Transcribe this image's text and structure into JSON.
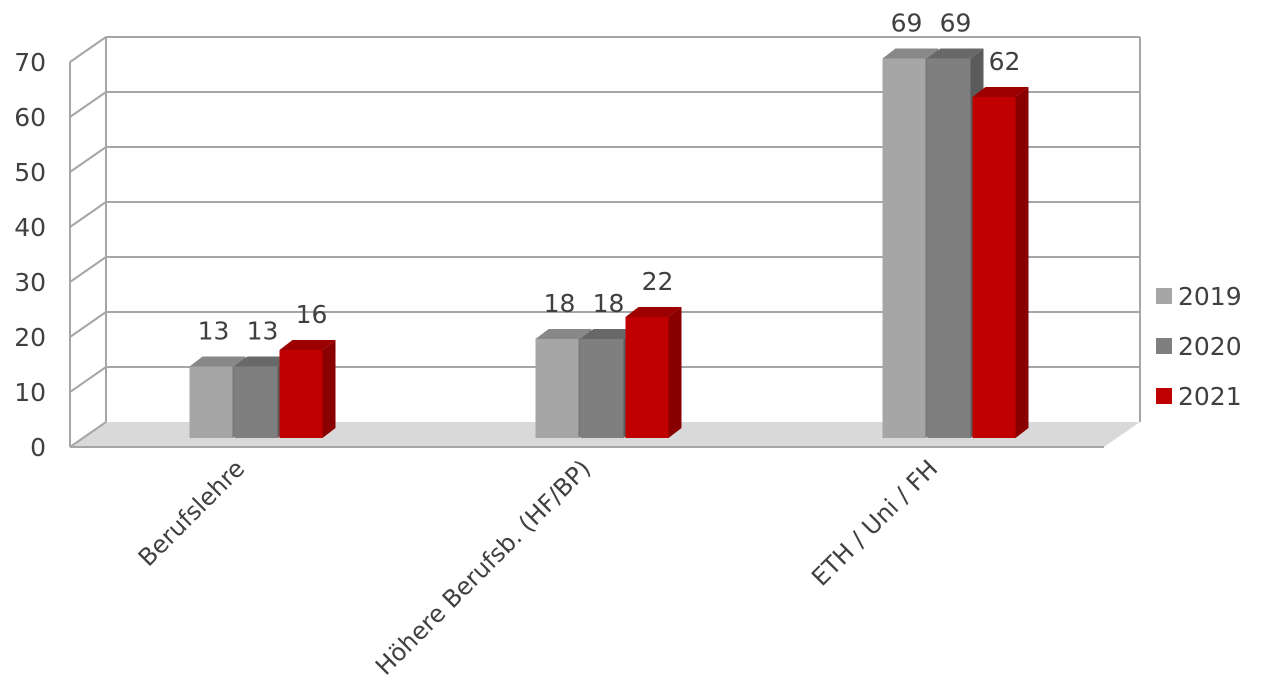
{
  "chart_data": {
    "type": "bar",
    "style": "3d-clustered-column",
    "categories": [
      "Berufslehre",
      "Höhere Berufsb. (HF/BP)",
      "ETH / Uni / FH"
    ],
    "series": [
      {
        "name": "2019",
        "values": [
          13,
          18,
          69
        ],
        "color": "#a6a6a6"
      },
      {
        "name": "2020",
        "values": [
          13,
          18,
          69
        ],
        "color": "#7f7f7f"
      },
      {
        "name": "2021",
        "values": [
          16,
          22,
          62
        ],
        "color": "#c00000"
      }
    ],
    "yticks": [
      "0",
      "10",
      "20",
      "30",
      "40",
      "50",
      "60",
      "70"
    ],
    "ylim": [
      0,
      70
    ],
    "grid": true,
    "legend_position": "right",
    "title": "",
    "xlabel": "",
    "ylabel": ""
  }
}
